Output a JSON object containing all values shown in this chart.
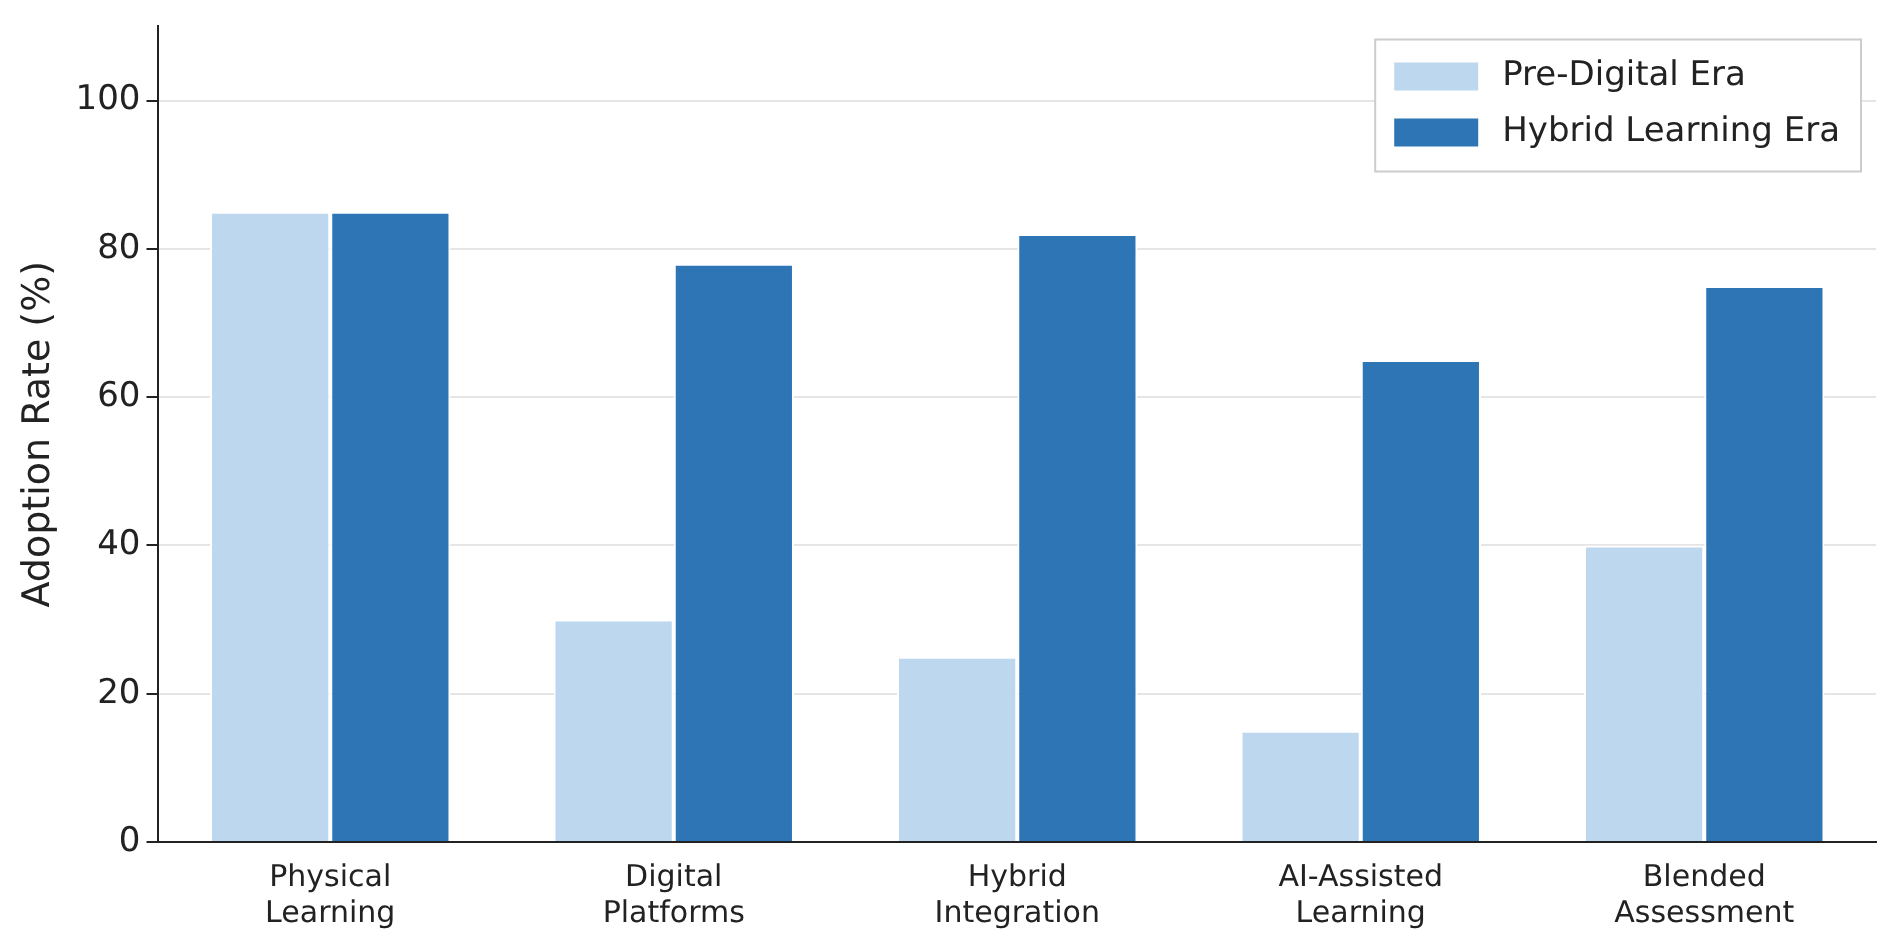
{
  "chart_data": {
    "type": "bar",
    "ylabel": "Adoption Rate (%)",
    "categories": [
      "Physical Learning",
      "Digital Platforms",
      "Hybrid Integration",
      "AI-Assisted Learning",
      "Blended Assessment"
    ],
    "series": [
      {
        "name": "Pre-Digital Era",
        "color": "#bdd7ee",
        "values": [
          85,
          30,
          25,
          15,
          40
        ]
      },
      {
        "name": "Hybrid Learning Era",
        "color": "#2e75b6",
        "values": [
          85,
          78,
          82,
          65,
          75
        ]
      }
    ],
    "ylim": [
      0,
      110
    ],
    "yticks": [
      0,
      20,
      40,
      60,
      80,
      100
    ],
    "grid": "y",
    "legend": "top right"
  }
}
